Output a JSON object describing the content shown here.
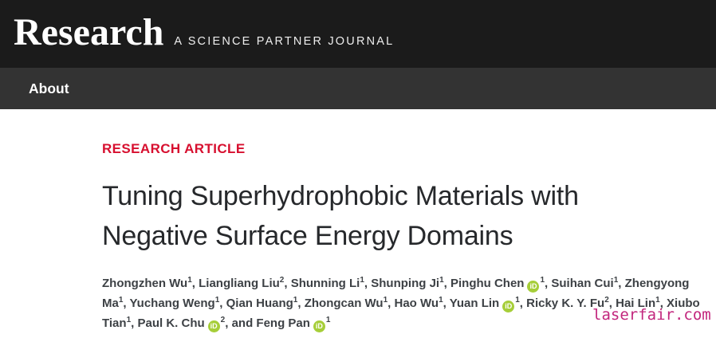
{
  "header": {
    "journal_name": "Research",
    "tagline": "A SCIENCE PARTNER JOURNAL"
  },
  "nav": {
    "items": [
      {
        "label": "About"
      }
    ]
  },
  "article": {
    "type_label": "RESEARCH ARTICLE",
    "title": "Tuning Superhydrophobic Materials with Negative Surface Energy Domains",
    "title_lines": [
      "Tuning Superhydrophobic Materials with",
      "Negative Surface Energy Domains"
    ],
    "authors": [
      {
        "name": "Zhongzhen Wu",
        "sup": "1",
        "orcid": false
      },
      {
        "name": "Liangliang Liu",
        "sup": "2",
        "orcid": false
      },
      {
        "name": "Shunning Li",
        "sup": "1",
        "orcid": false
      },
      {
        "name": "Shunping Ji",
        "sup": "1",
        "orcid": false
      },
      {
        "name": "Pinghu Chen",
        "sup": "1",
        "orcid": true
      },
      {
        "name": "Suihan Cui",
        "sup": "1",
        "orcid": false
      },
      {
        "name": "Zhengyong Ma",
        "sup": "1",
        "orcid": false
      },
      {
        "name": "Yuchang Weng",
        "sup": "1",
        "orcid": false
      },
      {
        "name": "Qian Huang",
        "sup": "1",
        "orcid": false
      },
      {
        "name": "Zhongcan Wu",
        "sup": "1",
        "orcid": false
      },
      {
        "name": "Hao Wu",
        "sup": "1",
        "orcid": false
      },
      {
        "name": "Yuan Lin",
        "sup": "1",
        "orcid": true
      },
      {
        "name": "Ricky K. Y. Fu",
        "sup": "2",
        "orcid": false
      },
      {
        "name": "Hai Lin",
        "sup": "1",
        "orcid": false
      },
      {
        "name": "Xiubo Tian",
        "sup": "1",
        "orcid": false
      },
      {
        "name": "Paul K. Chu",
        "sup": "2",
        "orcid": true
      },
      {
        "name": "Feng Pan",
        "sup": "1",
        "orcid": true,
        "prefix": "and "
      }
    ],
    "author_separator": ", "
  },
  "orcid_icon": {
    "label": "iD",
    "color": "#a6ce39"
  },
  "watermark": {
    "text": "laserfair.com",
    "color": "#c2267d"
  },
  "colors": {
    "masthead_bg": "#1b1b1b",
    "navbar_bg": "#333333",
    "accent_red": "#d70f2f",
    "title_text": "#26282b",
    "author_text": "#3d4145"
  }
}
